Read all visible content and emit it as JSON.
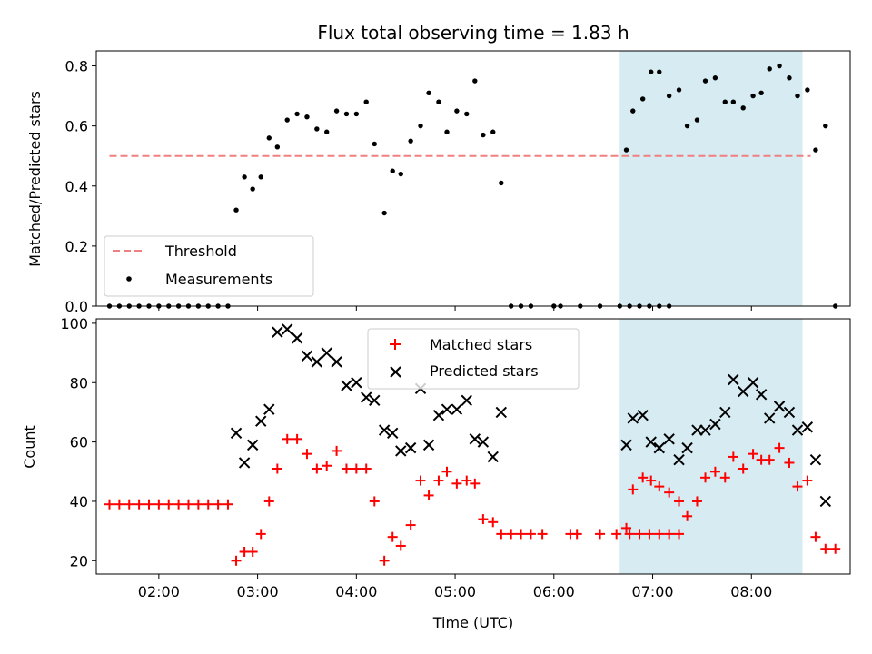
{
  "chart_data": [
    {
      "type": "scatter",
      "title": "Flux total observing time = 1.83 h",
      "xlabel": "",
      "ylabel": "Matched/Predicted stars",
      "xlim": [
        "01:22",
        "09:00"
      ],
      "ylim": [
        0,
        0.85
      ],
      "yticks": [
        0.0,
        0.2,
        0.4,
        0.6,
        0.8
      ],
      "ytick_labels": [
        "0.0",
        "0.2",
        "0.4",
        "0.6",
        "0.8"
      ],
      "grid": false,
      "legend_placement": "lower-left",
      "shaded_region": {
        "x": [
          "06:40",
          "08:31"
        ],
        "color": "#add8e6"
      },
      "threshold": {
        "name": "Threshold",
        "y": 0.5,
        "x": [
          "01:30",
          "08:36"
        ],
        "color": "#f08080",
        "style": "dashed"
      },
      "series": [
        {
          "name": "Measurements",
          "marker": "dot",
          "color": "#000000",
          "points": [
            [
              "01:30",
              0.0
            ],
            [
              "01:36",
              0.0
            ],
            [
              "01:42",
              0.0
            ],
            [
              "01:48",
              0.0
            ],
            [
              "01:54",
              0.0
            ],
            [
              "02:00",
              0.0
            ],
            [
              "02:06",
              0.0
            ],
            [
              "02:12",
              0.0
            ],
            [
              "02:18",
              0.0
            ],
            [
              "02:24",
              0.0
            ],
            [
              "02:30",
              0.0
            ],
            [
              "02:36",
              0.0
            ],
            [
              "02:42",
              0.0
            ],
            [
              "02:47",
              0.32
            ],
            [
              "02:52",
              0.43
            ],
            [
              "02:57",
              0.39
            ],
            [
              "03:02",
              0.43
            ],
            [
              "03:07",
              0.56
            ],
            [
              "03:12",
              0.53
            ],
            [
              "03:18",
              0.62
            ],
            [
              "03:24",
              0.64
            ],
            [
              "03:30",
              0.63
            ],
            [
              "03:36",
              0.59
            ],
            [
              "03:42",
              0.58
            ],
            [
              "03:48",
              0.65
            ],
            [
              "03:54",
              0.64
            ],
            [
              "04:00",
              0.64
            ],
            [
              "04:06",
              0.68
            ],
            [
              "04:11",
              0.54
            ],
            [
              "04:17",
              0.31
            ],
            [
              "04:22",
              0.45
            ],
            [
              "04:27",
              0.44
            ],
            [
              "04:33",
              0.55
            ],
            [
              "04:39",
              0.6
            ],
            [
              "04:44",
              0.71
            ],
            [
              "04:50",
              0.68
            ],
            [
              "04:55",
              0.58
            ],
            [
              "05:01",
              0.65
            ],
            [
              "05:07",
              0.64
            ],
            [
              "05:12",
              0.75
            ],
            [
              "05:17",
              0.57
            ],
            [
              "05:23",
              0.58
            ],
            [
              "05:28",
              0.41
            ],
            [
              "05:34",
              0.0
            ],
            [
              "05:40",
              0.0
            ],
            [
              "05:46",
              0.0
            ],
            [
              "06:00",
              0.0
            ],
            [
              "06:04",
              0.0
            ],
            [
              "06:16",
              0.0
            ],
            [
              "06:28",
              0.0
            ],
            [
              "06:40",
              0.0
            ],
            [
              "06:46",
              0.0
            ],
            [
              "06:52",
              0.0
            ],
            [
              "06:58",
              0.0
            ],
            [
              "07:04",
              0.0
            ],
            [
              "07:10",
              0.0
            ],
            [
              "06:44",
              0.52
            ],
            [
              "06:48",
              0.65
            ],
            [
              "06:54",
              0.69
            ],
            [
              "06:59",
              0.78
            ],
            [
              "07:04",
              0.78
            ],
            [
              "07:10",
              0.7
            ],
            [
              "07:16",
              0.72
            ],
            [
              "07:21",
              0.6
            ],
            [
              "07:27",
              0.62
            ],
            [
              "07:32",
              0.75
            ],
            [
              "07:38",
              0.76
            ],
            [
              "07:44",
              0.68
            ],
            [
              "07:49",
              0.68
            ],
            [
              "07:55",
              0.66
            ],
            [
              "08:01",
              0.7
            ],
            [
              "08:06",
              0.71
            ],
            [
              "08:11",
              0.79
            ],
            [
              "08:17",
              0.8
            ],
            [
              "08:23",
              0.76
            ],
            [
              "08:28",
              0.7
            ],
            [
              "08:34",
              0.72
            ],
            [
              "08:39",
              0.52
            ],
            [
              "08:45",
              0.6
            ],
            [
              "08:51",
              0.0
            ]
          ]
        }
      ]
    },
    {
      "type": "scatter",
      "title": "",
      "xlabel": "Time (UTC)",
      "ylabel": "Count",
      "xlim": [
        "01:22",
        "09:00"
      ],
      "xticks": [
        "02:00",
        "03:00",
        "04:00",
        "05:00",
        "06:00",
        "07:00",
        "08:00"
      ],
      "xtick_labels": [
        "02:00",
        "03:00",
        "04:00",
        "05:00",
        "06:00",
        "07:00",
        "08:00"
      ],
      "ylim": [
        15.5,
        101.5
      ],
      "yticks": [
        20,
        40,
        60,
        80,
        100
      ],
      "ytick_labels": [
        "20",
        "40",
        "60",
        "80",
        "100"
      ],
      "grid": false,
      "legend_placement": "upper-center",
      "shaded_region": {
        "x": [
          "06:40",
          "08:31"
        ],
        "color": "#add8e6"
      },
      "series": [
        {
          "name": "Matched stars",
          "marker": "plus",
          "color": "#ff0000",
          "points": [
            [
              "01:30",
              39
            ],
            [
              "01:36",
              39
            ],
            [
              "01:42",
              39
            ],
            [
              "01:48",
              39
            ],
            [
              "01:54",
              39
            ],
            [
              "02:00",
              39
            ],
            [
              "02:06",
              39
            ],
            [
              "02:12",
              39
            ],
            [
              "02:18",
              39
            ],
            [
              "02:24",
              39
            ],
            [
              "02:30",
              39
            ],
            [
              "02:36",
              39
            ],
            [
              "02:42",
              39
            ],
            [
              "02:47",
              20
            ],
            [
              "02:52",
              23
            ],
            [
              "02:57",
              23
            ],
            [
              "03:02",
              29
            ],
            [
              "03:07",
              40
            ],
            [
              "03:12",
              51
            ],
            [
              "03:18",
              61
            ],
            [
              "03:24",
              61
            ],
            [
              "03:30",
              56
            ],
            [
              "03:36",
              51
            ],
            [
              "03:42",
              52
            ],
            [
              "03:48",
              57
            ],
            [
              "03:54",
              51
            ],
            [
              "04:00",
              51
            ],
            [
              "04:06",
              51
            ],
            [
              "04:11",
              40
            ],
            [
              "04:17",
              20
            ],
            [
              "04:22",
              28
            ],
            [
              "04:27",
              25
            ],
            [
              "04:33",
              32
            ],
            [
              "04:39",
              47
            ],
            [
              "04:44",
              42
            ],
            [
              "04:50",
              47
            ],
            [
              "04:55",
              50
            ],
            [
              "05:01",
              46
            ],
            [
              "05:07",
              47
            ],
            [
              "05:12",
              46
            ],
            [
              "05:17",
              34
            ],
            [
              "05:23",
              33
            ],
            [
              "05:28",
              29
            ],
            [
              "05:34",
              29
            ],
            [
              "05:40",
              29
            ],
            [
              "05:46",
              29
            ],
            [
              "05:53",
              29
            ],
            [
              "06:10",
              29
            ],
            [
              "06:14",
              29
            ],
            [
              "06:28",
              29
            ],
            [
              "06:38",
              29
            ],
            [
              "06:46",
              29
            ],
            [
              "06:52",
              29
            ],
            [
              "06:58",
              29
            ],
            [
              "07:04",
              29
            ],
            [
              "07:10",
              29
            ],
            [
              "07:16",
              29
            ],
            [
              "06:44",
              31
            ],
            [
              "06:48",
              44
            ],
            [
              "06:54",
              48
            ],
            [
              "06:59",
              47
            ],
            [
              "07:04",
              45
            ],
            [
              "07:10",
              43
            ],
            [
              "07:16",
              40
            ],
            [
              "07:21",
              35
            ],
            [
              "07:27",
              40
            ],
            [
              "07:32",
              48
            ],
            [
              "07:38",
              50
            ],
            [
              "07:44",
              48
            ],
            [
              "07:49",
              55
            ],
            [
              "07:55",
              51
            ],
            [
              "08:01",
              56
            ],
            [
              "08:06",
              54
            ],
            [
              "08:11",
              54
            ],
            [
              "08:17",
              58
            ],
            [
              "08:23",
              53
            ],
            [
              "08:28",
              45
            ],
            [
              "08:34",
              47
            ],
            [
              "08:39",
              28
            ],
            [
              "08:45",
              24
            ],
            [
              "08:51",
              24
            ]
          ]
        },
        {
          "name": "Predicted stars",
          "marker": "x",
          "color": "#000000",
          "points": [
            [
              "02:47",
              63
            ],
            [
              "02:52",
              53
            ],
            [
              "02:57",
              59
            ],
            [
              "03:02",
              67
            ],
            [
              "03:07",
              71
            ],
            [
              "03:12",
              97
            ],
            [
              "03:18",
              98
            ],
            [
              "03:24",
              95
            ],
            [
              "03:30",
              89
            ],
            [
              "03:36",
              87
            ],
            [
              "03:42",
              90
            ],
            [
              "03:48",
              87
            ],
            [
              "03:54",
              79
            ],
            [
              "04:00",
              80
            ],
            [
              "04:06",
              75
            ],
            [
              "04:11",
              74
            ],
            [
              "04:17",
              64
            ],
            [
              "04:22",
              63
            ],
            [
              "04:27",
              57
            ],
            [
              "04:33",
              58
            ],
            [
              "04:39",
              78
            ],
            [
              "04:44",
              59
            ],
            [
              "04:50",
              69
            ],
            [
              "04:55",
              71
            ],
            [
              "05:01",
              71
            ],
            [
              "05:07",
              74
            ],
            [
              "05:12",
              61
            ],
            [
              "05:17",
              60
            ],
            [
              "05:23",
              55
            ],
            [
              "05:28",
              70
            ],
            [
              "06:44",
              59
            ],
            [
              "06:48",
              68
            ],
            [
              "06:54",
              69
            ],
            [
              "06:59",
              60
            ],
            [
              "07:04",
              58
            ],
            [
              "07:10",
              61
            ],
            [
              "07:16",
              54
            ],
            [
              "07:21",
              58
            ],
            [
              "07:27",
              64
            ],
            [
              "07:32",
              64
            ],
            [
              "07:38",
              66
            ],
            [
              "07:44",
              70
            ],
            [
              "07:49",
              81
            ],
            [
              "07:55",
              77
            ],
            [
              "08:01",
              80
            ],
            [
              "08:06",
              76
            ],
            [
              "08:11",
              68
            ],
            [
              "08:17",
              72
            ],
            [
              "08:23",
              70
            ],
            [
              "08:28",
              64
            ],
            [
              "08:34",
              65
            ],
            [
              "08:39",
              54
            ],
            [
              "08:45",
              40
            ]
          ]
        }
      ]
    }
  ],
  "legend_top": {
    "threshold_label": "Threshold",
    "measurements_label": "Measurements"
  },
  "legend_bottom": {
    "matched_label": "Matched stars",
    "predicted_label": "Predicted stars"
  }
}
